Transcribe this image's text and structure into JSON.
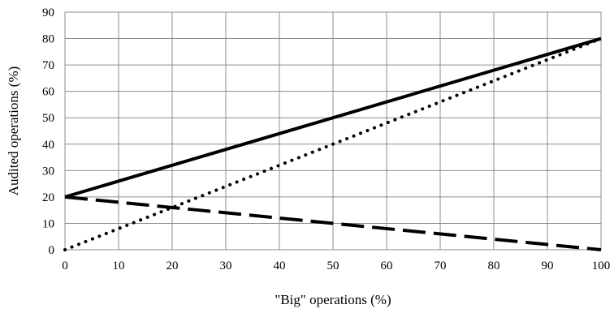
{
  "chart_data": {
    "type": "line",
    "title": "",
    "xlabel": "\"Big\" operations (%)",
    "ylabel": "Audited operations (%)",
    "xlim": [
      0,
      100
    ],
    "ylim": [
      0,
      90
    ],
    "x_ticks": [
      0,
      10,
      20,
      30,
      40,
      50,
      60,
      70,
      80,
      90,
      100
    ],
    "y_ticks": [
      0,
      10,
      20,
      30,
      40,
      50,
      60,
      70,
      80,
      90
    ],
    "grid": true,
    "legend": "none",
    "series": [
      {
        "style": "solid",
        "color": "#000000",
        "x": [
          0,
          100
        ],
        "y": [
          20,
          80
        ]
      },
      {
        "style": "dotted",
        "color": "#000000",
        "x": [
          0,
          100
        ],
        "y": [
          0,
          80
        ]
      },
      {
        "style": "dashed",
        "color": "#000000",
        "x": [
          0,
          100
        ],
        "y": [
          20,
          0
        ]
      }
    ]
  }
}
